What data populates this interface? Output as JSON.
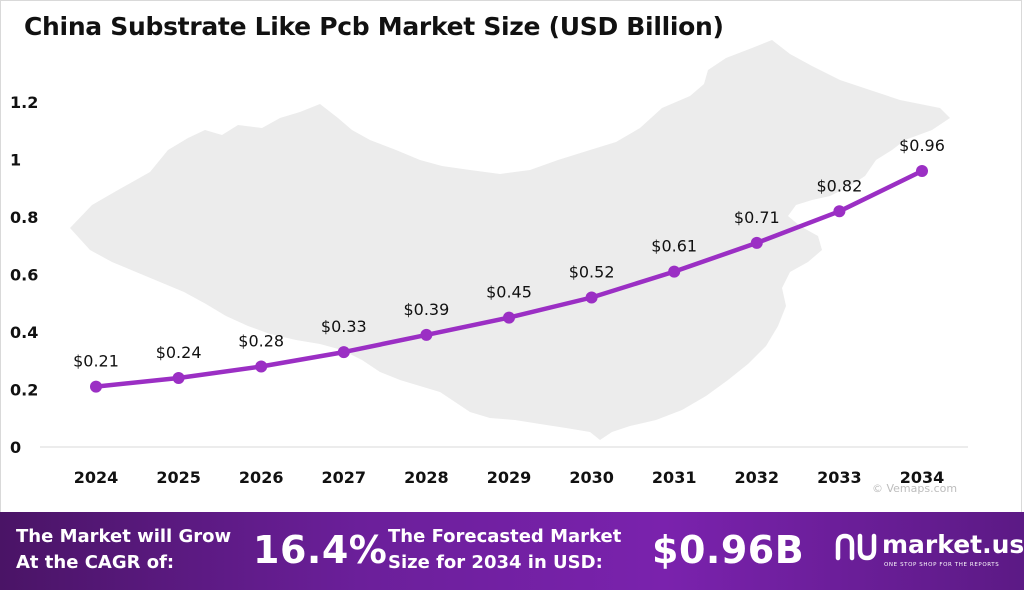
{
  "chart_data": {
    "type": "line",
    "title": "China Substrate  Like Pcb Market Size (USD Billion)",
    "xlabel": "",
    "ylabel": "",
    "categories": [
      "2024",
      "2025",
      "2026",
      "2027",
      "2028",
      "2029",
      "2030",
      "2031",
      "2032",
      "2033",
      "2034"
    ],
    "series": [
      {
        "values": [
          0.21,
          0.24,
          0.28,
          0.33,
          0.39,
          0.45,
          0.52,
          0.61,
          0.71,
          0.82,
          0.96
        ],
        "labels": [
          "$0.21",
          "$0.24",
          "$0.28",
          "$0.33",
          "$0.39",
          "$0.45",
          "$0.52",
          "$0.61",
          "$0.71",
          "$0.82",
          "$0.96"
        ],
        "color": "#9b2fc4"
      }
    ],
    "ylim": [
      0,
      1.2
    ],
    "yticks": [
      0,
      0.2,
      0.4,
      0.6,
      0.8,
      1,
      1.2
    ],
    "ytick_labels": [
      "0",
      "0.2",
      "0.4",
      "0.6",
      "0.8",
      "1",
      "1.2"
    ],
    "grid": false,
    "legend": "none",
    "background": "China map silhouette"
  },
  "footer": {
    "cagr_line1": "The Market will Grow",
    "cagr_line2": "At the CAGR of:",
    "cagr_value": "16.4%",
    "forecast_line1": "The Forecasted Market",
    "forecast_line2": "Size for 2034 in USD:",
    "forecast_value": "$0.96B",
    "brand": "market.us",
    "brand_tagline": "ONE STOP SHOP FOR THE REPORTS"
  },
  "watermark": "© Vemaps.com",
  "colors": {
    "line": "#9b2fc4",
    "map": "#ececec",
    "footer": "#6b1f9a"
  }
}
